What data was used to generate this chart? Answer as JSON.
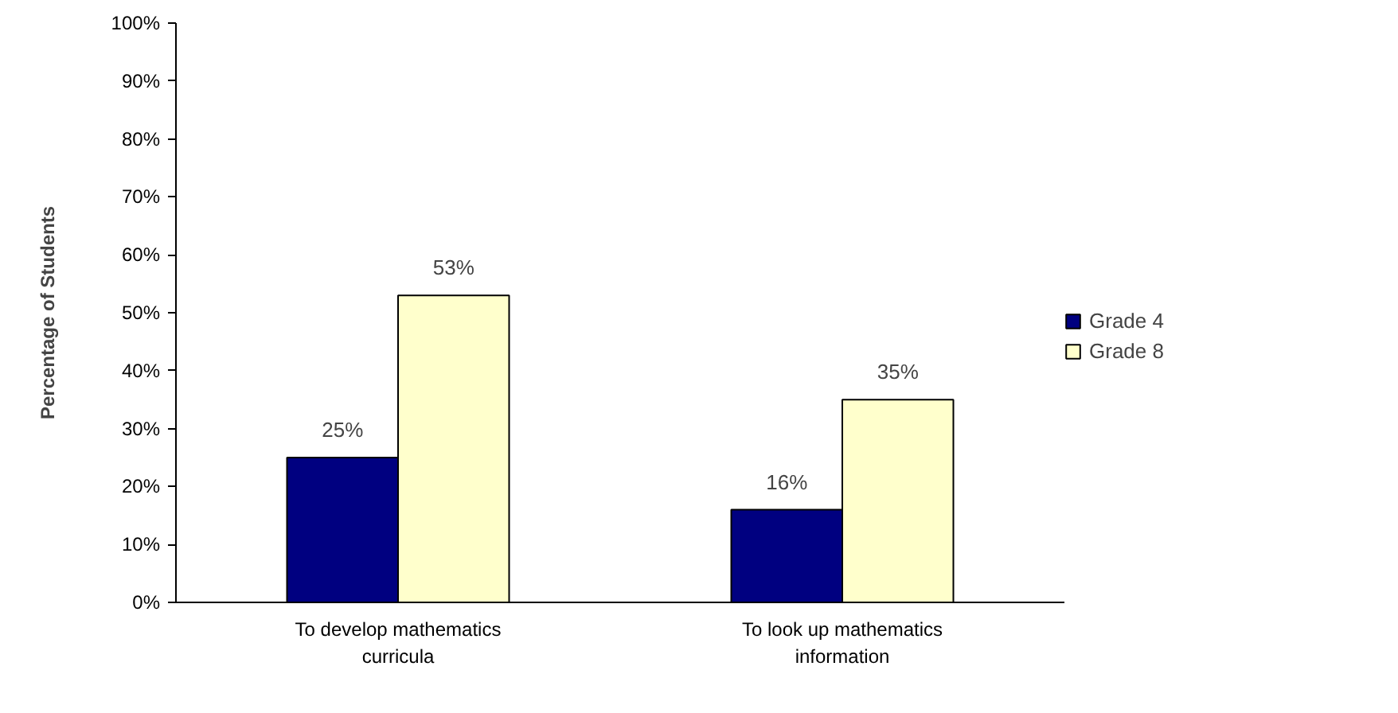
{
  "chart_data": {
    "type": "bar",
    "ylabel": "Percentage of Students",
    "categories": [
      "To develop mathematics curricula",
      "To look up mathematics information"
    ],
    "series": [
      {
        "name": "Grade 4",
        "color": "#000080",
        "values": [
          25,
          16
        ],
        "value_labels": [
          "25%",
          "16%"
        ]
      },
      {
        "name": "Grade 8",
        "color": "#ffffcc",
        "values": [
          53,
          35
        ],
        "value_labels": [
          "53%",
          "35%"
        ]
      }
    ],
    "ylim": [
      0,
      100
    ],
    "yticks": [
      {
        "value": 0,
        "label": "0%"
      },
      {
        "value": 10,
        "label": "10%"
      },
      {
        "value": 20,
        "label": "20%"
      },
      {
        "value": 30,
        "label": "30%"
      },
      {
        "value": 40,
        "label": "40%"
      },
      {
        "value": 50,
        "label": "50%"
      },
      {
        "value": 60,
        "label": "60%"
      },
      {
        "value": 70,
        "label": "70%"
      },
      {
        "value": 80,
        "label": "80%"
      },
      {
        "value": 90,
        "label": "90%"
      },
      {
        "value": 100,
        "label": "100%"
      }
    ],
    "grid": false,
    "legend": "right"
  }
}
